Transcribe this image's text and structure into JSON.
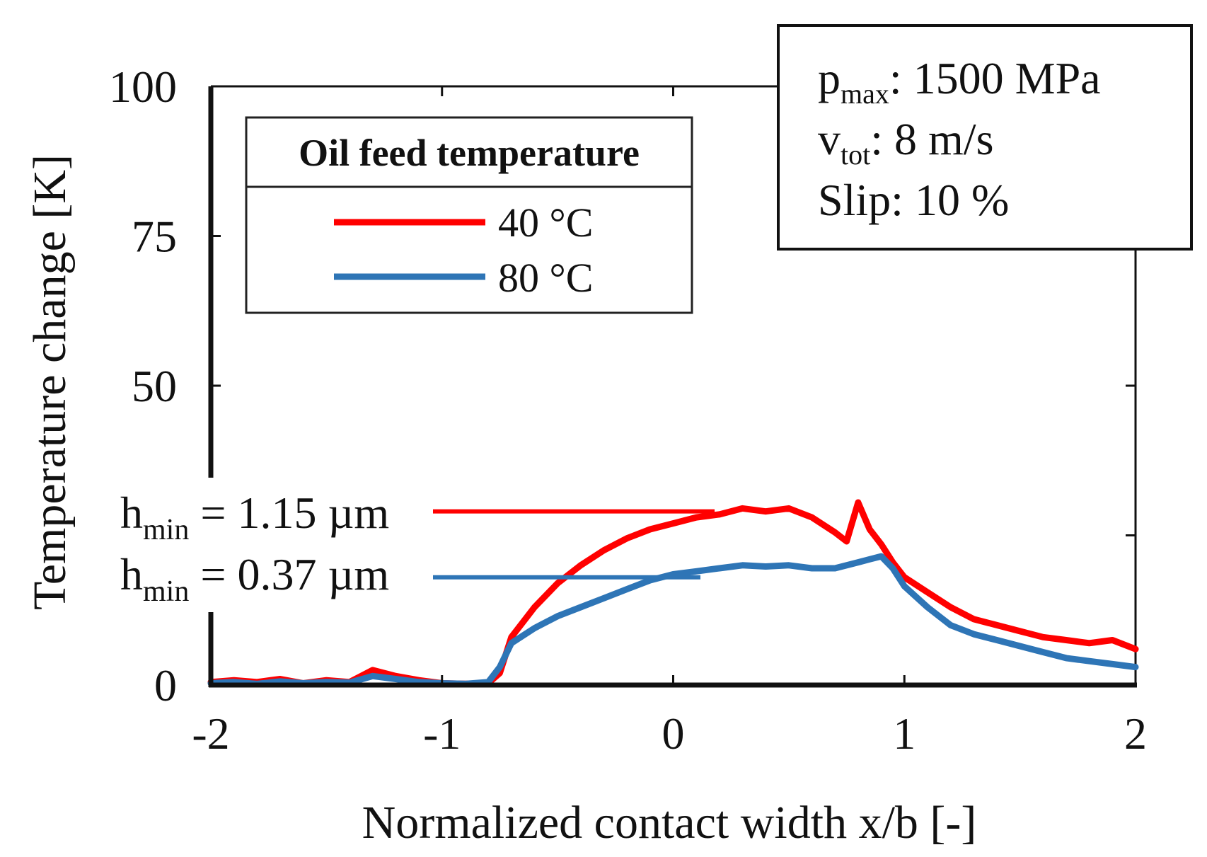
{
  "chart_data": {
    "type": "line",
    "title": "",
    "xlabel": "Normalized contact width x/b [-]",
    "ylabel": "Temperature change [K]",
    "xlim": [
      -2,
      2
    ],
    "ylim": [
      0,
      100
    ],
    "x_ticks": [
      -2,
      -1,
      0,
      1,
      2
    ],
    "x_tick_labels": [
      "-2",
      "-1",
      "0",
      "1",
      "2"
    ],
    "y_ticks": [
      0,
      50,
      75,
      100
    ],
    "y_tick_labels": [
      "0",
      "50",
      "75",
      "100"
    ],
    "grid": false,
    "legend": {
      "title": "Oil feed temperature",
      "placement": "top-left",
      "entries": [
        "40 °C",
        "80 °C"
      ]
    },
    "info_box": {
      "lines": [
        {
          "base": "p",
          "sub": "max",
          "rest": ": 1500 MPa"
        },
        {
          "base": "v",
          "sub": "tot",
          "rest": ": 8 m/s"
        },
        {
          "base": "Slip: 10 %",
          "sub": "",
          "rest": ""
        }
      ]
    },
    "annotations": [
      {
        "base": "h",
        "sub": "min",
        "rest": " = 1.15 µm",
        "series": "40 °C",
        "y": 29
      },
      {
        "base": "h",
        "sub": "min",
        "rest": " = 0.37 µm",
        "series": "80 °C",
        "y": 18
      }
    ],
    "series": [
      {
        "name": "40 °C",
        "color": "#ff0000",
        "x": [
          -2.0,
          -1.9,
          -1.8,
          -1.7,
          -1.6,
          -1.5,
          -1.4,
          -1.3,
          -1.2,
          -1.1,
          -1.0,
          -0.9,
          -0.8,
          -0.75,
          -0.7,
          -0.6,
          -0.5,
          -0.4,
          -0.3,
          -0.2,
          -0.1,
          0.0,
          0.1,
          0.2,
          0.3,
          0.4,
          0.5,
          0.6,
          0.7,
          0.75,
          0.8,
          0.85,
          0.9,
          0.95,
          1.0,
          1.1,
          1.2,
          1.3,
          1.4,
          1.5,
          1.6,
          1.7,
          1.8,
          1.9,
          2.0
        ],
        "y": [
          0.5,
          0.8,
          0.5,
          1.0,
          0.3,
          0.8,
          0.5,
          2.5,
          1.5,
          0.8,
          0.3,
          0.2,
          0.3,
          2.0,
          8.0,
          13.0,
          17.0,
          20.0,
          22.5,
          24.5,
          26.0,
          27.0,
          28.0,
          28.5,
          29.5,
          29.0,
          29.5,
          28.0,
          25.5,
          24.0,
          30.5,
          26.0,
          23.5,
          20.5,
          18.0,
          15.5,
          13.0,
          11.0,
          10.0,
          9.0,
          8.0,
          7.5,
          7.0,
          7.5,
          6.0
        ]
      },
      {
        "name": "80 °C",
        "color": "#2e75b6",
        "x": [
          -2.0,
          -1.9,
          -1.8,
          -1.7,
          -1.6,
          -1.5,
          -1.4,
          -1.3,
          -1.2,
          -1.1,
          -1.0,
          -0.9,
          -0.8,
          -0.75,
          -0.7,
          -0.6,
          -0.5,
          -0.4,
          -0.3,
          -0.2,
          -0.1,
          0.0,
          0.1,
          0.2,
          0.3,
          0.4,
          0.5,
          0.6,
          0.7,
          0.8,
          0.85,
          0.9,
          0.95,
          1.0,
          1.1,
          1.2,
          1.3,
          1.4,
          1.5,
          1.6,
          1.7,
          1.8,
          1.9,
          2.0
        ],
        "y": [
          0.3,
          0.5,
          0.2,
          0.6,
          0.3,
          0.5,
          0.4,
          1.5,
          1.0,
          0.5,
          0.3,
          0.2,
          0.5,
          3.0,
          7.0,
          9.5,
          11.5,
          13.0,
          14.5,
          16.0,
          17.5,
          18.5,
          19.0,
          19.5,
          20.0,
          19.8,
          20.0,
          19.5,
          19.5,
          20.5,
          21.0,
          21.5,
          19.5,
          16.5,
          13.0,
          10.0,
          8.5,
          7.5,
          6.5,
          5.5,
          4.5,
          4.0,
          3.5,
          3.0
        ]
      }
    ]
  }
}
